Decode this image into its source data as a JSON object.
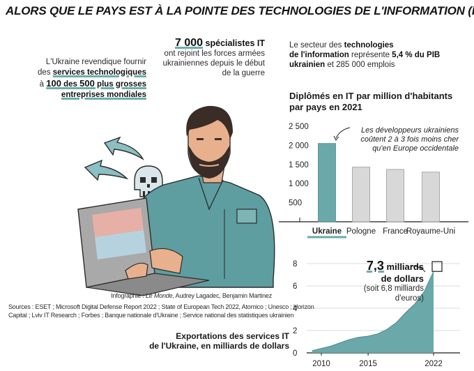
{
  "title": "ALORS QUE LE PAYS EST À LA POINTE DES TECHNOLOGIES DE L'INFORMATION (IT)",
  "colors": {
    "teal": "#6aa8aa",
    "grey": "#d8d8d8",
    "greyStroke": "#9a9a9a",
    "skin": "#e8b08c",
    "shirt": "#5e9ea0",
    "beard": "#3a2c26"
  },
  "left_block": {
    "line1": "L'Ukraine revendique fournir",
    "line2_prefix": "des ",
    "line2_strong": "services technologiques",
    "line3_prefix": "à ",
    "line3_num1": "100",
    "line3_mid": " des ",
    "line3_num2": "500",
    "line3_strong": " plus grosses",
    "line4_strong": "entreprises mondiales"
  },
  "center_block": {
    "number": "7 000",
    "strong": " spécialistes IT",
    "line2": "ont rejoint les forces armées",
    "line3": "ukrainiennes depuis le début",
    "line4": "de la guerre"
  },
  "right_block": {
    "line1_prefix": "Le secteur des ",
    "line1_strong": "technologies",
    "line2_strong": "de l'information",
    "line2_mid": " représente ",
    "line2_pct": "5,4 % du PIB",
    "line3_strong": "ukrainien",
    "line3_rest": " et 285 000 emplois"
  },
  "credits": {
    "infographie_prefix": "Infographie : ",
    "infographie_source": "Le Monde",
    "infographie_rest": ", Audrey Lagadec, Benjamin Martinez",
    "sources_line1": "Sources : ESET ; Microsoft Digital Defense Report 2022 ; State of European Tech 2022, Atomico ; Unesco ; Horizon",
    "sources_line2": "Capital ; Lviv IT Research ; Forbes ; Banque nationale d'Ukraine ; Service national des statistiques ukrainien"
  },
  "chart_data": [
    {
      "type": "bar",
      "title": "Diplômés en IT par million d'habitants par pays en 2021",
      "title_line1": "Diplômés en IT par million d'habitants",
      "title_line2": "par pays en 2021",
      "categories": [
        "Ukraine",
        "Pologne",
        "France",
        "Royaume-Uni"
      ],
      "values": [
        2050,
        1430,
        1370,
        1300
      ],
      "highlight": "Ukraine",
      "ylim": [
        0,
        2500
      ],
      "yticks": [
        "2 500",
        "2 000",
        "1 500",
        "1 000",
        "500"
      ],
      "ytick_values": [
        2500,
        2000,
        1500,
        1000,
        500
      ],
      "annotation": {
        "line1": "Les développeurs ukrainiens",
        "line2": "coûtent 2 à 3 fois moins cher",
        "line3": "qu'en Europe occidentale"
      }
    },
    {
      "type": "area",
      "title": "Exportations des services IT de l'Ukraine, en milliards de dollars",
      "title_line1": "Exportations des services IT",
      "title_line2": "de l'Ukraine, en milliards de dollars",
      "x": [
        2009,
        2010,
        2011,
        2012,
        2013,
        2014,
        2015,
        2016,
        2017,
        2018,
        2019,
        2020,
        2021,
        2022
      ],
      "values": [
        0.2,
        0.4,
        0.6,
        0.9,
        1.2,
        1.4,
        1.5,
        1.7,
        2.1,
        2.7,
        3.6,
        4.4,
        5.5,
        7.3
      ],
      "xticks": [
        "2010",
        "2015",
        "2022"
      ],
      "xtick_values": [
        2010,
        2015,
        2022
      ],
      "ylim": [
        0,
        8
      ],
      "yticks": [
        "8",
        "6",
        "4",
        "2",
        "0"
      ],
      "ytick_values": [
        8,
        6,
        4,
        2,
        0
      ],
      "annotation": {
        "value_big": "7,3",
        "value_unit": " milliards",
        "line2": "de dollars",
        "line3": "(soit 6,8 milliards",
        "line4": "d'euros)"
      }
    }
  ]
}
